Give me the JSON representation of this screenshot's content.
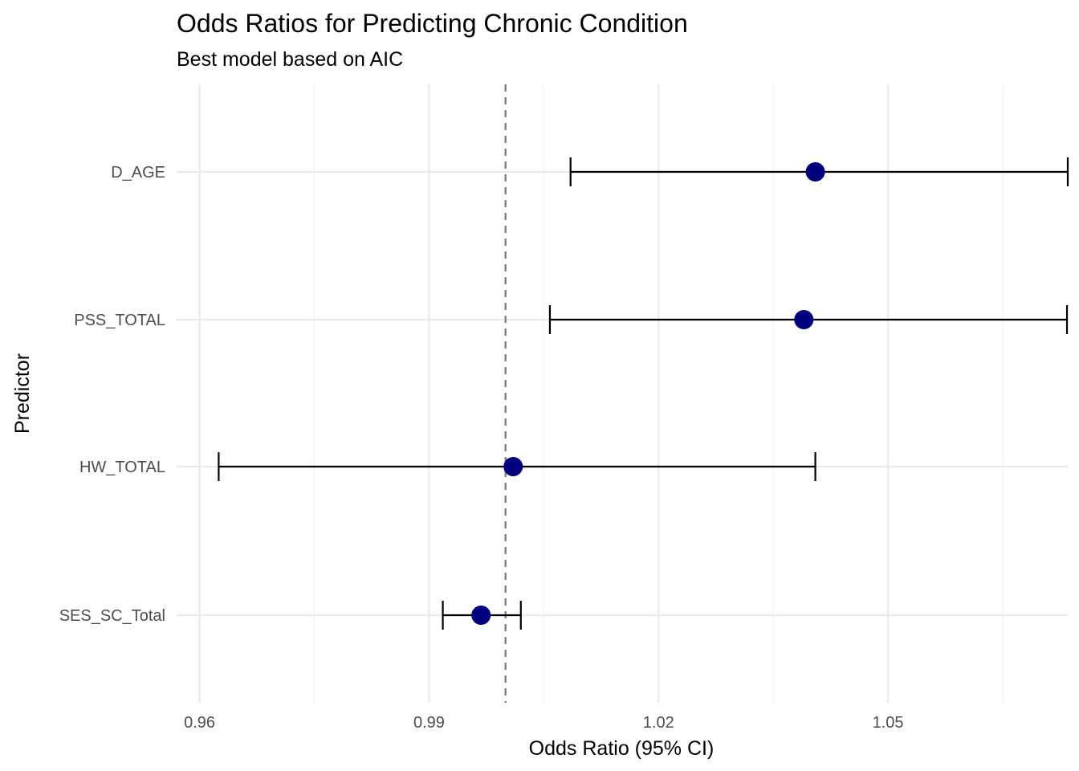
{
  "chart_data": {
    "type": "forest",
    "title": "Odds Ratios for Predicting Chronic Condition",
    "subtitle": "Best model based on AIC",
    "xlabel": "Odds Ratio (95% CI)",
    "ylabel": "Predictor",
    "xlim": [
      0.957,
      1.0735
    ],
    "x_ticks": [
      0.96,
      0.99,
      1.02,
      1.05
    ],
    "x_tick_labels": [
      "0.96",
      "0.99",
      "1.02",
      "1.05"
    ],
    "reference_line": 1.0,
    "grid": true,
    "predictors": [
      {
        "name": "D_AGE",
        "estimate": 1.0405,
        "ci_low": 1.0085,
        "ci_high": 1.0735
      },
      {
        "name": "PSS_TOTAL",
        "estimate": 1.039,
        "ci_low": 1.0058,
        "ci_high": 1.0734
      },
      {
        "name": "HW_TOTAL",
        "estimate": 1.001,
        "ci_low": 0.9625,
        "ci_high": 1.0405
      },
      {
        "name": "SES_SC_Total",
        "estimate": 0.9968,
        "ci_low": 0.9918,
        "ci_high": 1.002
      }
    ],
    "colors": {
      "point": "#00007f",
      "errorbar": "#000000",
      "reference_line": "#808080",
      "grid_major": "#ebebeb",
      "grid_minor": "#f2f2f2"
    }
  }
}
